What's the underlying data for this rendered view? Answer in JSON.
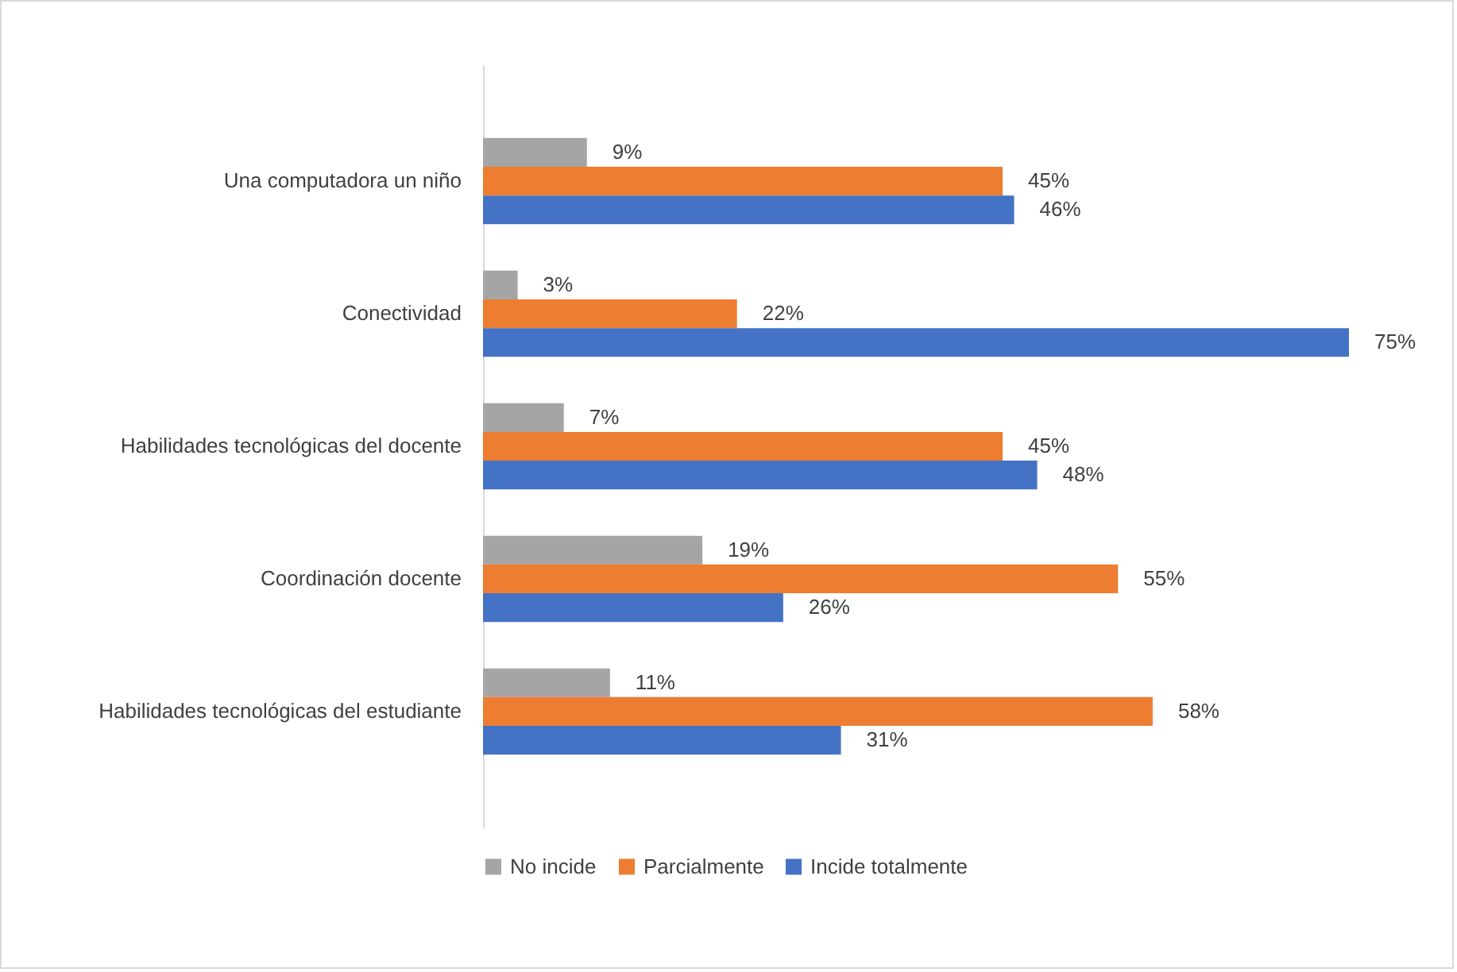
{
  "chart_data": {
    "type": "bar",
    "orientation": "horizontal",
    "categories": [
      "Una computadora un niño",
      "Conectividad",
      "Habilidades tecnológicas del docente",
      "Coordinación docente",
      "Habilidades tecnológicas del estudiante"
    ],
    "series": [
      {
        "name": "No incide",
        "color": "#a5a5a5",
        "values": [
          9,
          3,
          7,
          19,
          11
        ],
        "value_labels": [
          "9%",
          "3%",
          "7%",
          "19%",
          "11%"
        ]
      },
      {
        "name": "Parcialmente",
        "color": "#ed7d31",
        "values": [
          45,
          22,
          45,
          55,
          58
        ],
        "value_labels": [
          "45%",
          "22%",
          "45%",
          "55%",
          "58%"
        ]
      },
      {
        "name": "Incide totalmente",
        "color": "#4472c4",
        "values": [
          46,
          75,
          48,
          26,
          31
        ],
        "value_labels": [
          "46%",
          "75%",
          "48%",
          "26%",
          "31%"
        ]
      }
    ],
    "xlim": [
      0,
      75
    ],
    "tick_labels": "y",
    "legend": "bottom"
  }
}
